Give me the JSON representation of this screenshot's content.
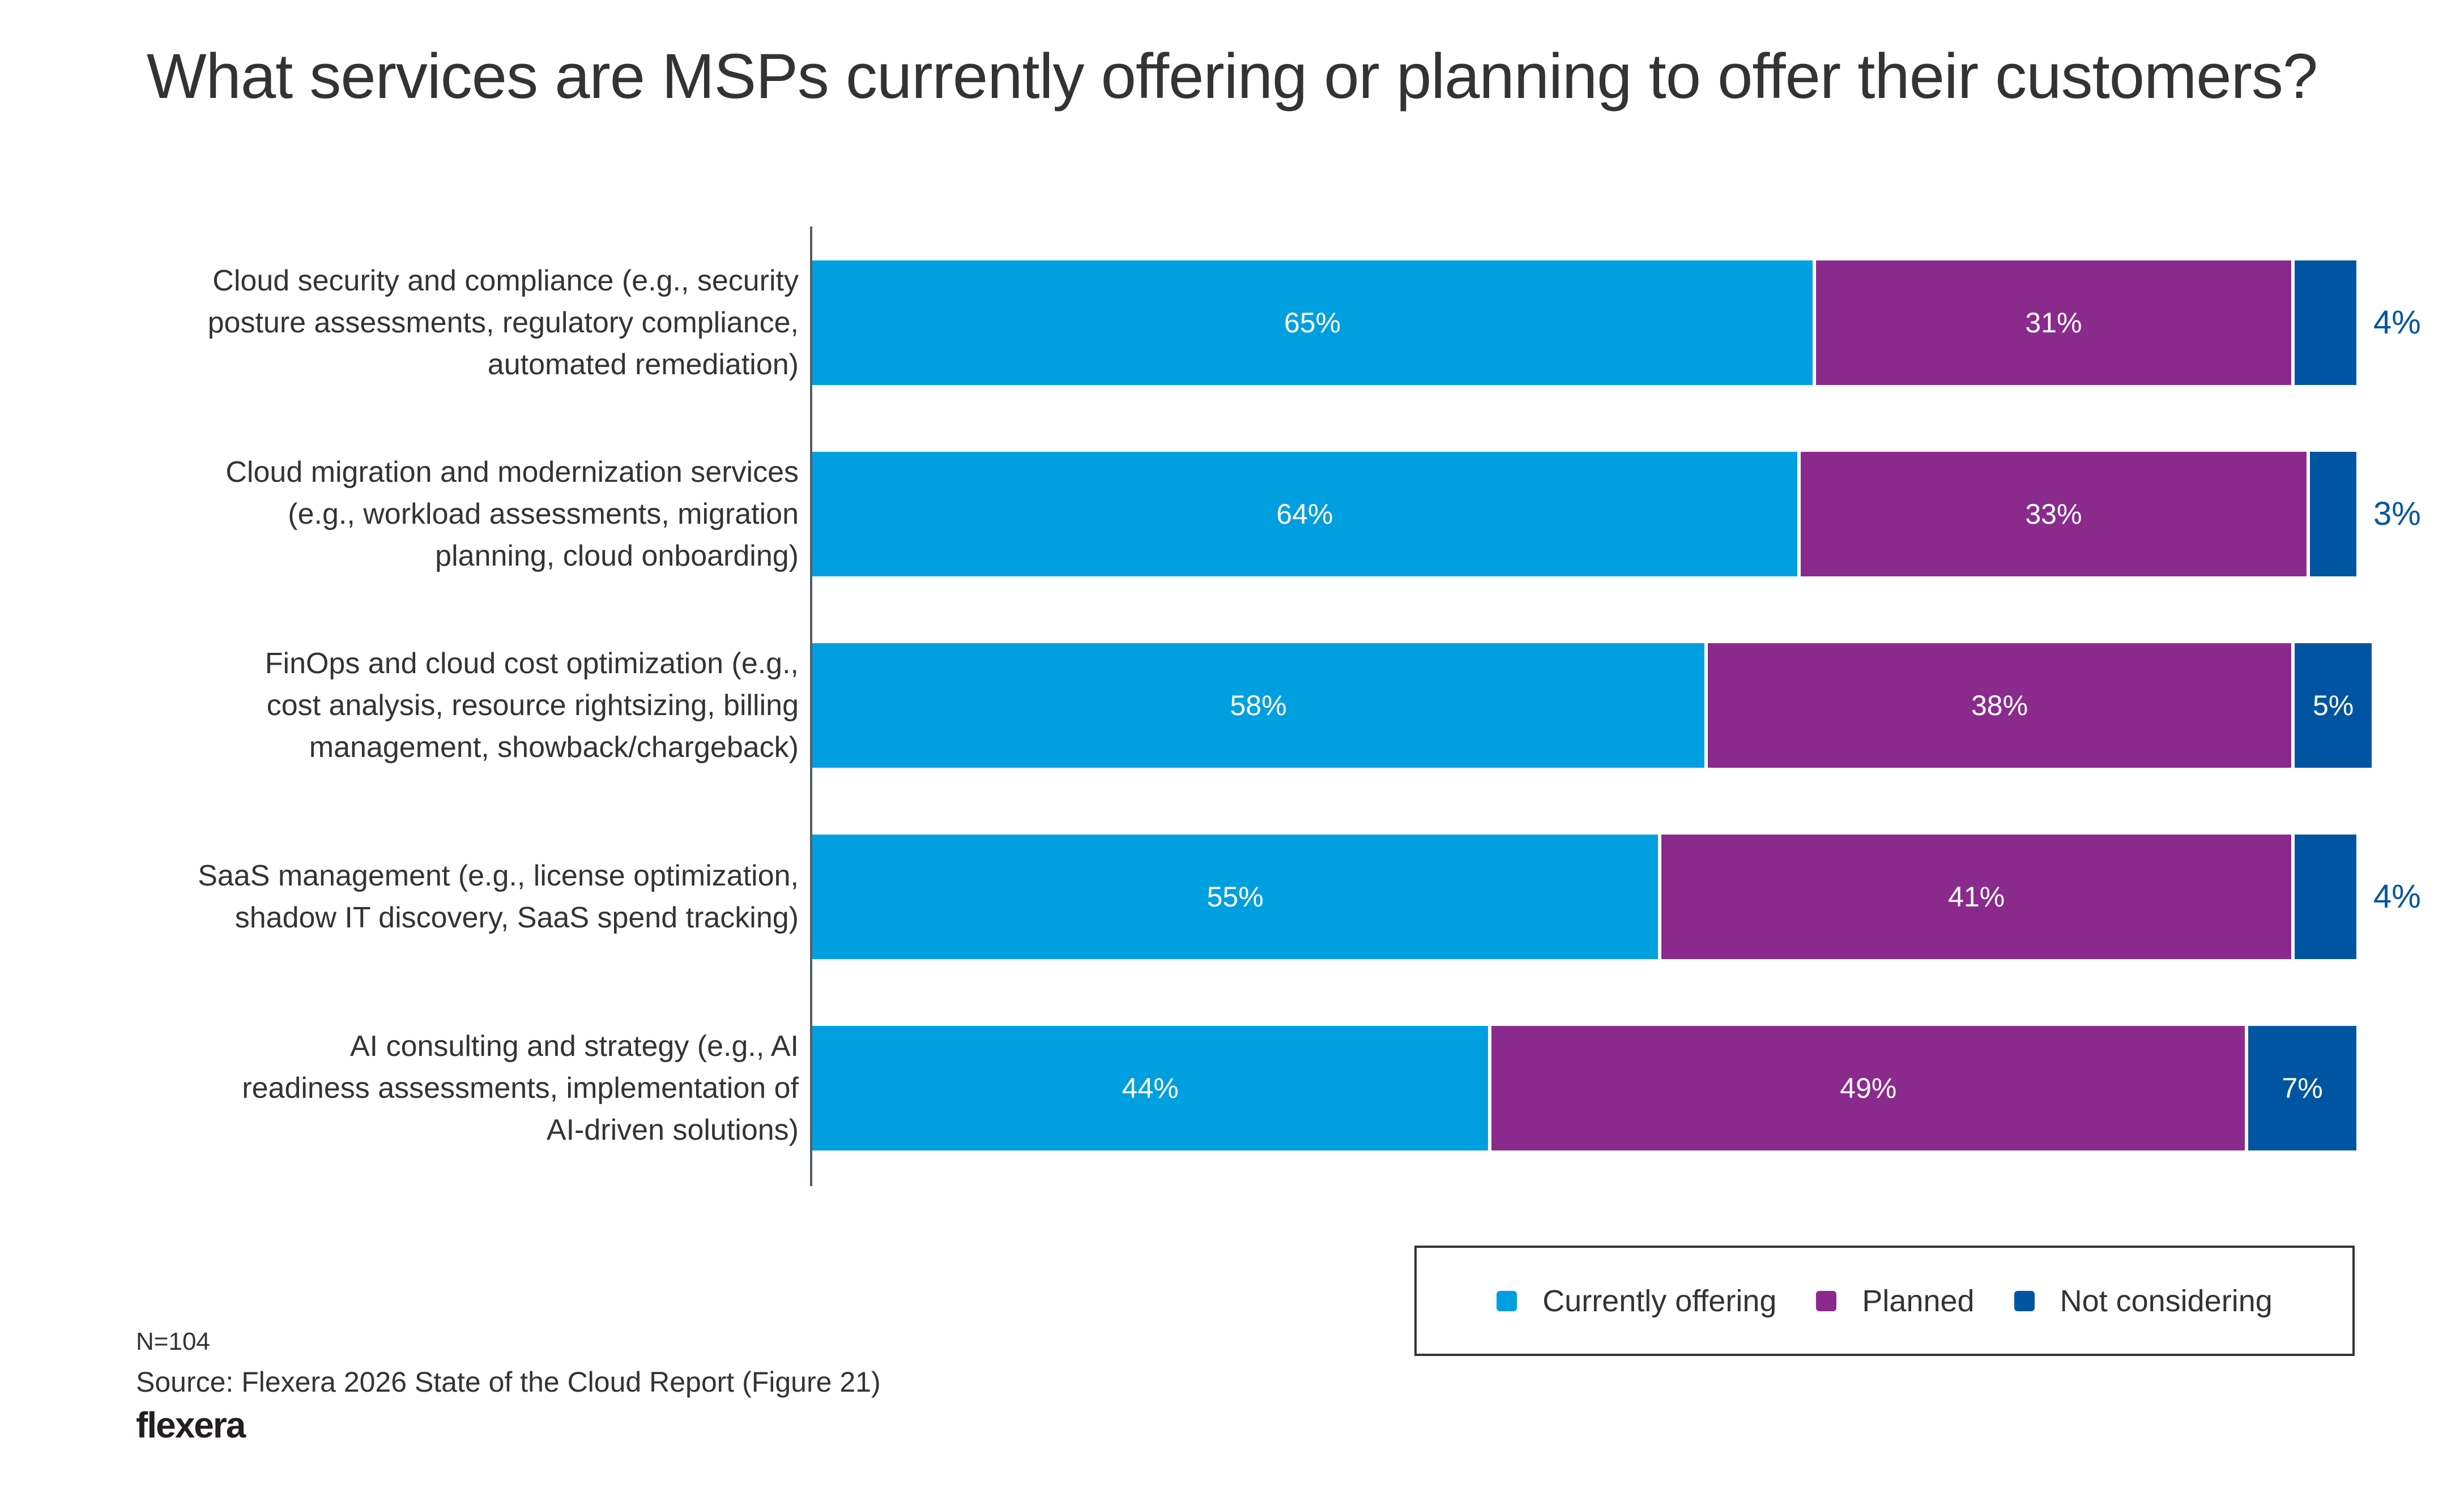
{
  "chart_data": {
    "type": "bar",
    "orientation": "horizontal",
    "stacked": true,
    "title": "What services are MSPs currently offering or planning to offer their customers?",
    "xlabel": "",
    "ylabel": "",
    "xlim": [
      0,
      100
    ],
    "grid": false,
    "legend_position": "bottom-right",
    "categories": [
      "Cloud security and compliance (e.g., security posture assessments, regulatory compliance, automated remediation)",
      "Cloud migration and modernization services (e.g., workload assessments, migration planning, cloud onboarding)",
      "FinOps and cloud cost optimization (e.g., cost analysis, resource rightsizing, billing management, showback/chargeback)",
      "SaaS management (e.g., license optimization, shadow IT discovery, SaaS spend tracking)",
      "AI consulting and strategy (e.g., AI readiness assessments, implementation of AI-driven solutions)"
    ],
    "category_lines": [
      [
        "Cloud security and compliance (e.g., security",
        "posture assessments, regulatory compliance,",
        "automated remediation)"
      ],
      [
        "Cloud migration and modernization services",
        "(e.g., workload assessments, migration",
        "planning, cloud onboarding)"
      ],
      [
        "FinOps and cloud cost optimization (e.g.,",
        "cost analysis, resource rightsizing, billing",
        "management, showback/chargeback)"
      ],
      [
        "SaaS management (e.g., license optimization,",
        "shadow IT discovery, SaaS spend tracking)"
      ],
      [
        "AI consulting and strategy (e.g., AI",
        "readiness assessments, implementation of",
        "AI-driven solutions)"
      ]
    ],
    "series": [
      {
        "name": "Currently offering",
        "color": "#009fe0",
        "values": [
          65,
          64,
          58,
          55,
          44
        ]
      },
      {
        "name": "Planned",
        "color": "#8b2a8d",
        "values": [
          31,
          33,
          38,
          41,
          49
        ]
      },
      {
        "name": "Not considering",
        "color": "#0055a2",
        "values": [
          4,
          3,
          5,
          4,
          7
        ]
      }
    ],
    "value_suffix": "%"
  },
  "footer": {
    "sample_size": "N=104",
    "source": "Source: Flexera 2026 State of the Cloud Report (Figure 21)",
    "logo": "flexera"
  }
}
